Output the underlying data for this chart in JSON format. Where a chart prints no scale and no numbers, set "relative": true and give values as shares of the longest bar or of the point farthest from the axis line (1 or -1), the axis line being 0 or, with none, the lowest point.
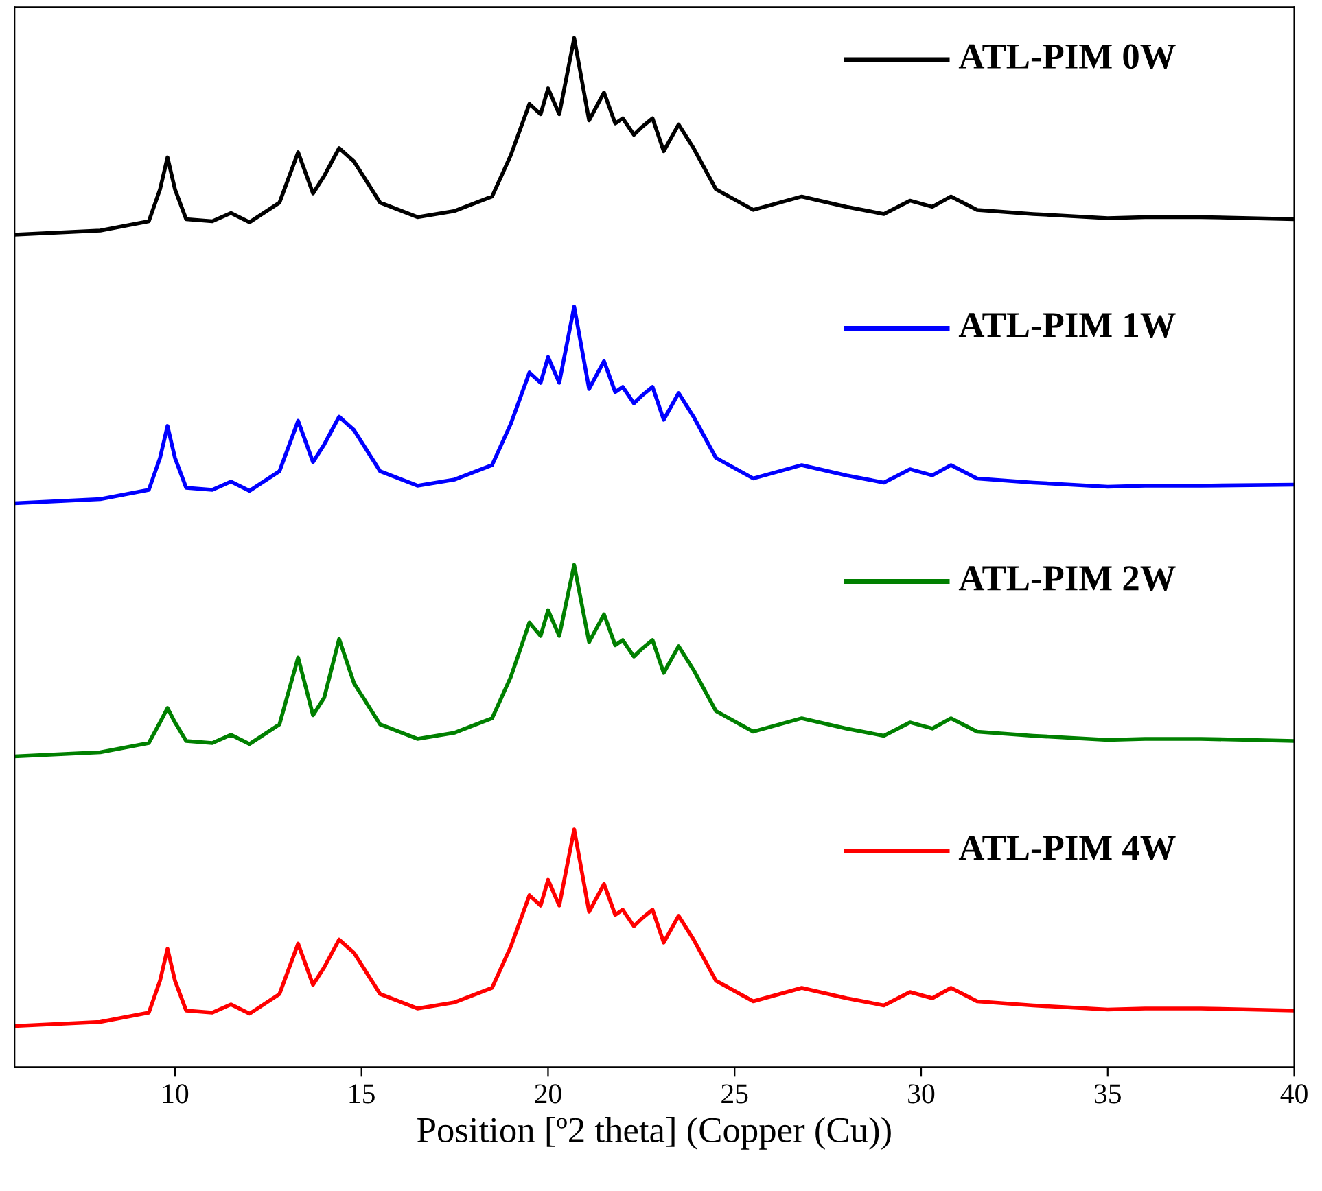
{
  "chart_data": {
    "type": "line",
    "relative": true,
    "xlabel": "Position [º2 theta] (Copper (Cu))",
    "x": [
      5.7,
      8,
      9.3,
      9.6,
      9.8,
      10.0,
      10.3,
      11,
      11.5,
      12,
      12.8,
      13.3,
      13.7,
      14.0,
      14.4,
      14.8,
      15.5,
      16.5,
      17.5,
      18.5,
      19.0,
      19.5,
      19.8,
      20.0,
      20.3,
      20.7,
      21.1,
      21.5,
      21.8,
      22.0,
      22.3,
      22.5,
      22.8,
      23.1,
      23.5,
      23.9,
      24.5,
      25.5,
      26.8,
      28,
      29,
      29.7,
      30.3,
      30.8,
      31.5,
      33,
      35,
      36,
      37.5,
      40
    ],
    "xlim": [
      5.7,
      40
    ],
    "xticks": [
      10,
      15,
      20,
      25,
      30,
      35,
      40
    ],
    "grid": false,
    "legend": "top right",
    "line_style": "solid",
    "marker": "none",
    "series": [
      {
        "name": "ATL-PIM 0W",
        "color": "#000000",
        "values": [
          0.809,
          0.813,
          0.822,
          0.853,
          0.884,
          0.853,
          0.824,
          0.822,
          0.83,
          0.821,
          0.84,
          0.889,
          0.849,
          0.866,
          0.893,
          0.88,
          0.84,
          0.826,
          0.832,
          0.846,
          0.886,
          0.936,
          0.926,
          0.951,
          0.926,
          1,
          0.92,
          0.947,
          0.917,
          0.922,
          0.906,
          0.913,
          0.922,
          0.89,
          0.916,
          0.893,
          0.853,
          0.833,
          0.846,
          0.836,
          0.829,
          0.842,
          0.836,
          0.846,
          0.833,
          0.829,
          0.825,
          0.826,
          0.826,
          0.824
        ]
      },
      {
        "name": "ATL-PIM 1W",
        "color": "#0000ff",
        "values": [
          0.548,
          0.552,
          0.561,
          0.592,
          0.623,
          0.592,
          0.563,
          0.561,
          0.569,
          0.56,
          0.579,
          0.628,
          0.588,
          0.605,
          0.632,
          0.619,
          0.579,
          0.565,
          0.571,
          0.585,
          0.625,
          0.675,
          0.665,
          0.69,
          0.665,
          0.739,
          0.659,
          0.686,
          0.656,
          0.661,
          0.645,
          0.652,
          0.661,
          0.629,
          0.655,
          0.632,
          0.592,
          0.572,
          0.585,
          0.575,
          0.568,
          0.581,
          0.575,
          0.585,
          0.572,
          0.568,
          0.564,
          0.565,
          0.565,
          0.566
        ]
      },
      {
        "name": "ATL-PIM 2W",
        "color": "#008000",
        "values": [
          0.302,
          0.306,
          0.315,
          0.335,
          0.349,
          0.335,
          0.317,
          0.315,
          0.323,
          0.314,
          0.333,
          0.398,
          0.342,
          0.359,
          0.416,
          0.373,
          0.333,
          0.319,
          0.325,
          0.339,
          0.379,
          0.432,
          0.419,
          0.444,
          0.419,
          0.488,
          0.413,
          0.44,
          0.41,
          0.415,
          0.399,
          0.406,
          0.415,
          0.383,
          0.409,
          0.386,
          0.346,
          0.326,
          0.339,
          0.329,
          0.322,
          0.335,
          0.329,
          0.339,
          0.326,
          0.322,
          0.318,
          0.319,
          0.319,
          0.317
        ]
      },
      {
        "name": "ATL-PIM 4W",
        "color": "#ff0000",
        "values": [
          0.04,
          0.044,
          0.053,
          0.084,
          0.115,
          0.084,
          0.055,
          0.053,
          0.061,
          0.052,
          0.071,
          0.12,
          0.08,
          0.097,
          0.124,
          0.111,
          0.071,
          0.057,
          0.063,
          0.077,
          0.117,
          0.167,
          0.157,
          0.182,
          0.157,
          0.231,
          0.151,
          0.178,
          0.148,
          0.153,
          0.137,
          0.144,
          0.153,
          0.121,
          0.147,
          0.124,
          0.084,
          0.064,
          0.077,
          0.067,
          0.06,
          0.073,
          0.067,
          0.077,
          0.064,
          0.06,
          0.056,
          0.057,
          0.057,
          0.055
        ]
      }
    ]
  }
}
